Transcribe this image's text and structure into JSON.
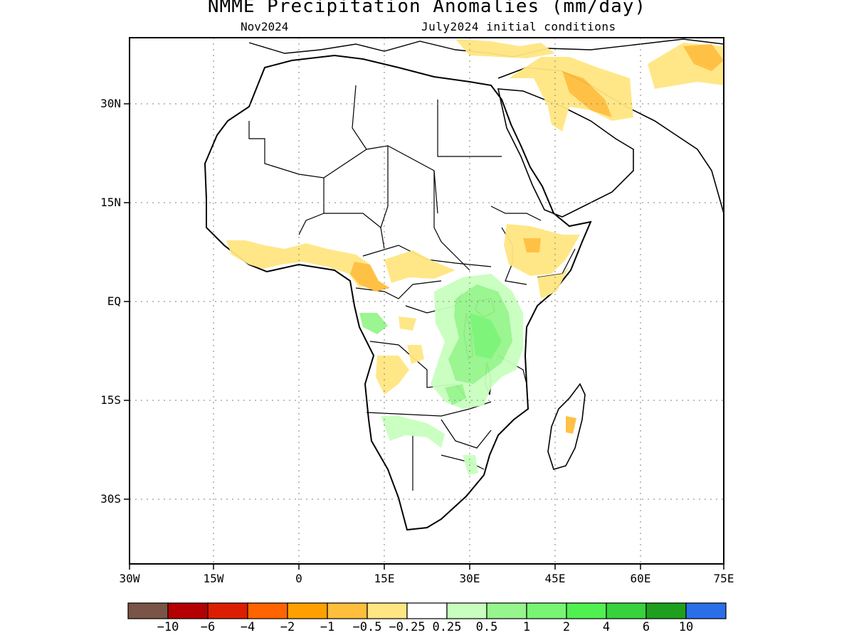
{
  "title": "NMME Precipitation Anomalies (mm/day)",
  "subtitle_left": "Nov2024",
  "subtitle_right": "July2024 initial conditions",
  "map": {
    "region": "Africa",
    "lon_range": [
      -30,
      75
    ],
    "lat_range": [
      -45,
      40
    ],
    "gridlines": "dotted",
    "y_ticks": [
      {
        "label": "30N",
        "lat": 30
      },
      {
        "label": "15N",
        "lat": 15
      },
      {
        "label": "EQ",
        "lat": 0
      },
      {
        "label": "15S",
        "lat": -15
      },
      {
        "label": "30S",
        "lat": -30
      }
    ],
    "x_ticks": [
      {
        "label": "30W",
        "lon": -30
      },
      {
        "label": "15W",
        "lon": -15
      },
      {
        "label": "0",
        "lon": 0
      },
      {
        "label": "15E",
        "lon": 15
      },
      {
        "label": "30E",
        "lon": 30
      },
      {
        "label": "45E",
        "lon": 45
      },
      {
        "label": "60E",
        "lon": 60
      },
      {
        "label": "75E",
        "lon": 75
      }
    ]
  },
  "colorbar": {
    "colors": [
      "#7a5446",
      "#b40000",
      "#dc1e00",
      "#ff6400",
      "#ffa000",
      "#ffbe3c",
      "#ffe682",
      "#ffffff",
      "#c8ffbe",
      "#96f58c",
      "#78f573",
      "#50f050",
      "#37d23c",
      "#1ea01e",
      "#2a6fe8"
    ],
    "labels": [
      "−10",
      "−6",
      "−4",
      "−2",
      "−1",
      "−0.5",
      "−0.25",
      "0.25",
      "0.5",
      "1",
      "2",
      "4",
      "6",
      "10"
    ]
  }
}
